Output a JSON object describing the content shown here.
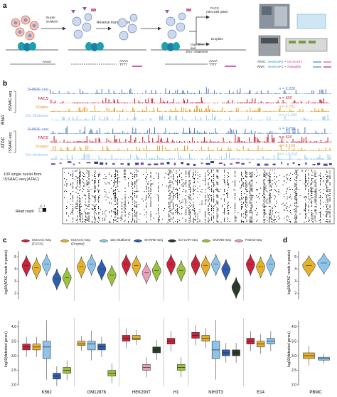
{
  "panel_a": {
    "letter": "a",
    "step1": "Nuclei\nisolation",
    "step2": "Reverse transcription",
    "step3": "Gap fill-in\nand\nExo I treatment",
    "polyA1": "AAAA",
    "polyA2": "AAAA\nTTTT",
    "polyA3": "AAAA\nTTTT",
    "facs_label": "FACS\n(384-well plate)",
    "droplet_label": "Droplets",
    "atac_legend_label": "ATAC:",
    "atac_legend_parts": [
      "NexteraR1",
      " + ",
      "NexteraR2"
    ],
    "rna_legend_label": "RNA:",
    "rna_legend_parts": [
      "NexteraR1",
      " + ",
      "TruseqR2"
    ]
  },
  "panel_b": {
    "letter": "b",
    "rna_group": "RNA",
    "atac_group": "ATAC",
    "issaac_label": "ISSAAC-seq",
    "tracks": {
      "rna": [
        {
          "name": "SHARE-seq",
          "n": "n = 5,220",
          "color": "#4a78c0"
        },
        {
          "name": "FACS",
          "n": "n = 320",
          "color": "#c8102e"
        },
        {
          "name": "Droplet",
          "n": "n = 5,701",
          "color": "#e39a2a"
        },
        {
          "name": "10x Multiome",
          "n": "n = 11,694",
          "color": "#8ec4ea"
        }
      ],
      "atac": [
        {
          "name": "SHARE-seq",
          "n": "n = 7,755",
          "color": "#4a78c0"
        },
        {
          "name": "FACS",
          "n": "n = 320",
          "color": "#c8102e"
        },
        {
          "name": "Droplet",
          "n": "n = 5,160",
          "color": "#e39a2a"
        },
        {
          "name": "10x Multiome",
          "n": "n = 13,228",
          "color": "#8ec4ea"
        }
      ]
    },
    "heatmap_label": "100 single nuclei from\nISSAAC-seq (ATAC)",
    "read_count_label": "Read count",
    "scale_min": "0",
    "scale_max": "1"
  },
  "panel_c": {
    "letter": "c",
    "legend": [
      {
        "name": "ISSAAC-seq\n(FACS)",
        "color": "#c8243c"
      },
      {
        "name": "ISSAAC-seq\n(Droplet)",
        "color": "#e5b12c"
      },
      {
        "name": "10x Multiome",
        "color": "#8ec4ea"
      },
      {
        "name": "SHARE-seq",
        "color": "#2f5fae"
      },
      {
        "name": "sci-CAR-seq",
        "color": "#2a3a2a"
      },
      {
        "name": "SNARE-seq",
        "color": "#9bc23c"
      },
      {
        "name": "Paired-seq",
        "color": "#e7a0b8"
      }
    ],
    "violin_ylabel": "log10(ATAC reads in peaks)",
    "box_ylabel": "log10(detected genes)",
    "violin_ticks": [
      "2",
      "3",
      "4",
      "5"
    ],
    "box_ticks": [
      "2.0",
      "2.5",
      "3.0",
      "3.5",
      "4.0"
    ],
    "cell_lines": [
      "K562",
      "GM12878",
      "HEK293T",
      "H1",
      "NIH3T3",
      "E14"
    ]
  },
  "panel_d": {
    "letter": "d",
    "xlabel": "PBMC",
    "violin_ylabel": "log10(ATAC reads in peaks)",
    "box_ylabel": "log10(detected genes)",
    "violin_ticks": [
      "2",
      "3",
      "4",
      "5"
    ],
    "box_ticks": [
      "2.0",
      "2.5",
      "3.0",
      "3.5",
      "4.0"
    ]
  },
  "chart_data": [
    {
      "type": "violin",
      "panel": "c-top",
      "ylabel": "log10(ATAC reads in peaks)",
      "ylim": [
        1.5,
        5.5
      ],
      "groups": [
        {
          "category": "K562",
          "series": [
            "ISSAAC-seq (FACS)",
            "ISSAAC-seq (Droplet)",
            "10x Multiome",
            "SHARE-seq",
            "SNARE-seq"
          ],
          "medians": [
            4.3,
            4.1,
            4.4,
            3.2,
            3.3
          ]
        },
        {
          "category": "GM12878",
          "series": [
            "ISSAAC-seq (Droplet)",
            "10x Multiome",
            "SHARE-seq",
            "SNARE-seq"
          ],
          "medians": [
            4.2,
            4.4,
            4.0,
            3.5
          ]
        },
        {
          "category": "HEK293T",
          "series": [
            "ISSAAC-seq (FACS)",
            "ISSAAC-seq (Droplet)",
            "Paired-seq",
            "SNARE-seq"
          ],
          "medians": [
            4.4,
            4.3,
            3.7,
            3.9
          ]
        },
        {
          "category": "H1",
          "series": [
            "ISSAAC-seq (FACS)",
            "SNARE-seq"
          ],
          "medians": [
            4.4,
            3.9
          ]
        },
        {
          "category": "NIH3T3",
          "series": [
            "ISSAAC-seq (FACS)",
            "ISSAAC-seq (Droplet)",
            "10x Multiome",
            "SHARE-seq",
            "sci-CAR-seq"
          ],
          "medians": [
            4.4,
            4.3,
            4.4,
            4.0,
            2.5
          ]
        },
        {
          "category": "E14",
          "series": [
            "ISSAAC-seq (FACS)",
            "ISSAAC-seq (Droplet)",
            "10x Multiome"
          ],
          "medians": [
            4.4,
            4.2,
            4.4
          ]
        }
      ]
    },
    {
      "type": "box",
      "panel": "c-bottom",
      "ylabel": "log10(detected genes)",
      "ylim": [
        2.0,
        4.2
      ],
      "groups": [
        {
          "category": "K562",
          "series": [
            "ISSAAC-seq (FACS)",
            "ISSAAC-seq (Droplet)",
            "10x Multiome",
            "SHARE-seq",
            "SNARE-seq"
          ],
          "medians": [
            3.3,
            3.3,
            3.3,
            2.3,
            2.5
          ],
          "q1": [
            3.2,
            3.2,
            2.9,
            2.2,
            2.4
          ],
          "q3": [
            3.4,
            3.4,
            3.5,
            2.4,
            2.6
          ]
        },
        {
          "category": "GM12878",
          "series": [
            "ISSAAC-seq (Droplet)",
            "10x Multiome",
            "SHARE-seq",
            "SNARE-seq"
          ],
          "medians": [
            3.4,
            3.4,
            3.3,
            2.4
          ],
          "q1": [
            3.35,
            3.2,
            3.2,
            2.3
          ],
          "q3": [
            3.5,
            3.5,
            3.4,
            2.5
          ]
        },
        {
          "category": "HEK293T",
          "series": [
            "ISSAAC-seq (FACS)",
            "ISSAAC-seq (Droplet)",
            "Paired-seq",
            "sci-CAR-seq"
          ],
          "medians": [
            3.6,
            3.6,
            2.6,
            3.2
          ],
          "q1": [
            3.5,
            3.55,
            2.5,
            3.1
          ],
          "q3": [
            3.7,
            3.7,
            2.7,
            3.3
          ]
        },
        {
          "category": "H1",
          "series": [
            "ISSAAC-seq (FACS)",
            "SNARE-seq"
          ],
          "medians": [
            3.5,
            2.6
          ],
          "q1": [
            3.4,
            2.5
          ],
          "q3": [
            3.6,
            2.7
          ]
        },
        {
          "category": "NIH3T3",
          "series": [
            "ISSAAC-seq (FACS)",
            "ISSAAC-seq (Droplet)",
            "10x Multiome",
            "SHARE-seq",
            "sci-CAR-seq"
          ],
          "medians": [
            3.7,
            3.6,
            3.2,
            3.1,
            3.1
          ],
          "q1": [
            3.6,
            3.5,
            2.9,
            3.0,
            3.0
          ],
          "q3": [
            3.8,
            3.7,
            3.5,
            3.2,
            3.2
          ]
        },
        {
          "category": "E14",
          "series": [
            "ISSAAC-seq (FACS)",
            "ISSAAC-seq (Droplet)",
            "10x Multiome"
          ],
          "medians": [
            3.5,
            3.4,
            3.5
          ],
          "q1": [
            3.4,
            3.3,
            3.4
          ],
          "q3": [
            3.6,
            3.5,
            3.6
          ]
        }
      ]
    },
    {
      "type": "violin",
      "panel": "d-top",
      "xlabel": "PBMC",
      "ylim": [
        1.5,
        5.5
      ],
      "groups": [
        {
          "category": "PBMC",
          "series": [
            "ISSAAC-seq (Droplet)",
            "10x Multiome"
          ],
          "medians": [
            4.3,
            4.5
          ]
        }
      ]
    },
    {
      "type": "box",
      "panel": "d-bottom",
      "xlabel": "PBMC",
      "ylim": [
        2.0,
        4.2
      ],
      "groups": [
        {
          "category": "PBMC",
          "series": [
            "ISSAAC-seq (Droplet)",
            "10x Multiome"
          ],
          "medians": [
            3.0,
            2.9
          ],
          "q1": [
            2.9,
            2.85
          ],
          "q3": [
            3.1,
            2.95
          ]
        }
      ]
    }
  ]
}
